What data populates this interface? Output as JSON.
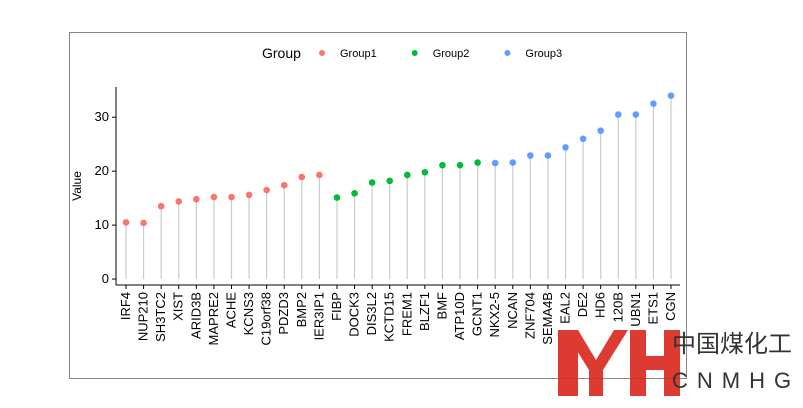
{
  "chart_data": {
    "type": "lollipop",
    "y_label": "Value",
    "legend_title": "Group",
    "legend_position": "top",
    "categories": [
      "IRF4",
      "NUP210",
      "SH3TC2",
      "XIST",
      "ARID3B",
      "MAPRE2",
      "ACHE",
      "KCNS3",
      "C19orf38",
      "PDZD3",
      "BMP2",
      "IER3IP1",
      "FIBP",
      "DOCK3",
      "DIS3L2",
      "KCTD15",
      "FREM1",
      "BLZF1",
      "BMF",
      "ATP10D",
      "GCNT1",
      "NKX2-5",
      "NCAN",
      "ZNF704",
      "SEMA4B",
      "EAL2",
      "DE2",
      "HD6",
      "120B",
      "UBN1",
      "ETS1",
      "CGN"
    ],
    "series": [
      {
        "name": "Group1",
        "color": "#F8766D",
        "values": [
          10.5,
          10.4,
          13.5,
          14.4,
          14.8,
          15.2,
          15.2,
          15.6,
          16.5,
          17.4,
          18.9,
          19.3,
          null,
          null,
          null,
          null,
          null,
          null,
          null,
          null,
          null,
          null,
          null,
          null,
          null,
          null,
          null,
          null,
          null,
          null,
          null,
          null
        ]
      },
      {
        "name": "Group2",
        "color": "#00BA38",
        "values": [
          null,
          null,
          null,
          null,
          null,
          null,
          null,
          null,
          null,
          null,
          null,
          null,
          15.1,
          15.9,
          17.9,
          18.2,
          19.3,
          19.8,
          21.1,
          21.1,
          21.6,
          null,
          null,
          null,
          null,
          null,
          null,
          null,
          null,
          null,
          null,
          null
        ]
      },
      {
        "name": "Group3",
        "color": "#619CFF",
        "values": [
          null,
          null,
          null,
          null,
          null,
          null,
          null,
          null,
          null,
          null,
          null,
          null,
          null,
          null,
          null,
          null,
          null,
          null,
          null,
          null,
          null,
          21.5,
          21.6,
          22.9,
          22.9,
          24.4,
          26.0,
          27.5,
          30.5,
          30.5,
          32.5,
          34.0
        ]
      }
    ],
    "ylim": [
      -1.1,
      35.6
    ],
    "yticks": [
      0,
      10,
      20,
      30
    ],
    "stem_color": "#cccccc"
  },
  "watermark": {
    "text": "中国煤化工",
    "subtext": "CNMHG"
  }
}
